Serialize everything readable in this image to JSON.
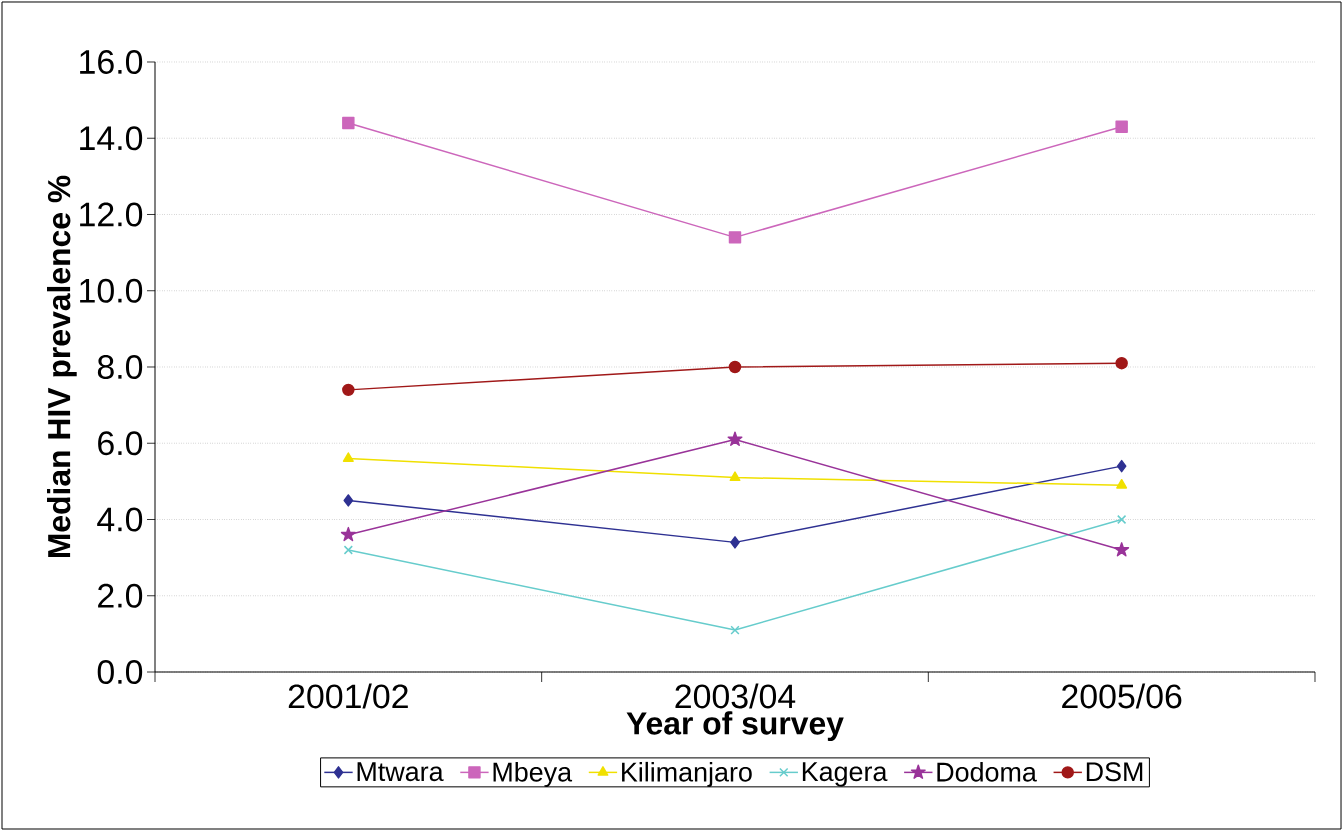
{
  "chart_data": {
    "type": "line",
    "xlabel": "Year of survey",
    "ylabel": "Median HIV prevalence %",
    "categories": [
      "2001/02",
      "2003/04",
      "2005/06"
    ],
    "series": [
      {
        "name": "Mtwara",
        "color": "#2e3192",
        "marker": "diamond",
        "values": [
          4.5,
          3.4,
          5.4
        ]
      },
      {
        "name": "Mbeya",
        "color": "#cc66bb",
        "marker": "square",
        "values": [
          14.4,
          11.4,
          14.3
        ]
      },
      {
        "name": "Kilimanjaro",
        "color": "#f0e000",
        "marker": "triangle",
        "values": [
          5.6,
          5.1,
          4.9
        ]
      },
      {
        "name": "Kagera",
        "color": "#66cccc",
        "marker": "cross",
        "values": [
          3.2,
          1.1,
          4.0
        ]
      },
      {
        "name": "Dodoma",
        "color": "#993399",
        "marker": "star",
        "values": [
          3.6,
          6.1,
          3.2
        ]
      },
      {
        "name": "DSM",
        "color": "#a01818",
        "marker": "circle",
        "values": [
          7.4,
          8.0,
          8.1
        ]
      }
    ],
    "ylim": [
      0,
      16
    ],
    "yticks": [
      {
        "value": 0,
        "label": "0.0"
      },
      {
        "value": 2,
        "label": "2.0"
      },
      {
        "value": 4,
        "label": "4.0"
      },
      {
        "value": 6,
        "label": "6.0"
      },
      {
        "value": 8,
        "label": "8.0"
      },
      {
        "value": 10,
        "label": "10.0"
      },
      {
        "value": 12,
        "label": "12.0"
      },
      {
        "value": 14,
        "label": "14.0"
      },
      {
        "value": 16,
        "label": "16.0"
      }
    ],
    "grid": "y",
    "legend": "bottom",
    "line_style": "solid"
  }
}
